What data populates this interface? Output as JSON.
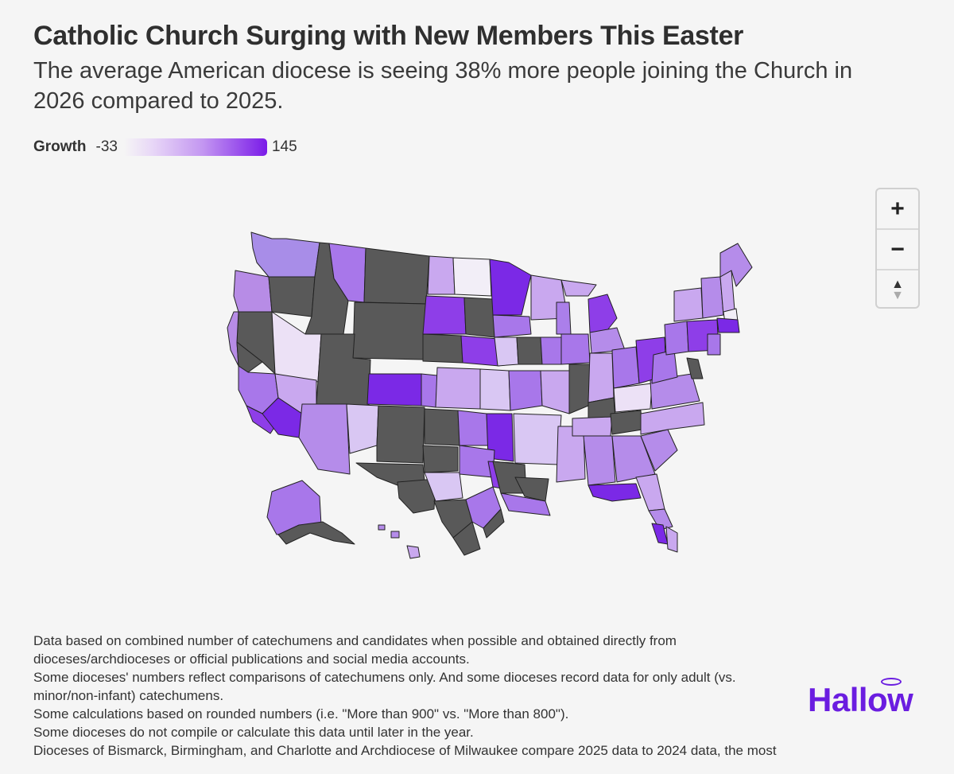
{
  "header": {
    "title": "Catholic Church Surging with New Members This Easter",
    "subtitle": "The average American diocese is seeing 38% more people joining the Church in 2026 compared to 2025."
  },
  "legend": {
    "label": "Growth",
    "min": "-33",
    "max": "145",
    "colors": {
      "low": "#f5f5f5",
      "mid": "#c396f1",
      "high": "#7a1be8",
      "no_data": "#595959"
    }
  },
  "zoom_controls": {
    "zoom_in": "+",
    "zoom_out": "−",
    "reset_north_up": "▲",
    "reset_north_down": "▼"
  },
  "notes": [
    "Data based on combined number of catechumens and candidates when possible and obtained directly from dioceses/archdioceses or official publications and social media accounts.",
    "Some dioceses' numbers reflect comparisons of catechumens only. And some dioceses record data for only adult (vs. minor/non-infant) catechumens.",
    "Some calculations based on rounded numbers (i.e. \"More than 900\" vs. \"More than 800\").",
    "Some dioceses do not compile or calculate this data until later in the year.",
    "Dioceses of Bismarck, Birmingham, and Charlotte and Archdiocese of Milwaukee compare 2025 data to 2024 data, the most"
  ],
  "brand": {
    "logo_text": "Hallow",
    "color": "#6a1de0"
  }
}
